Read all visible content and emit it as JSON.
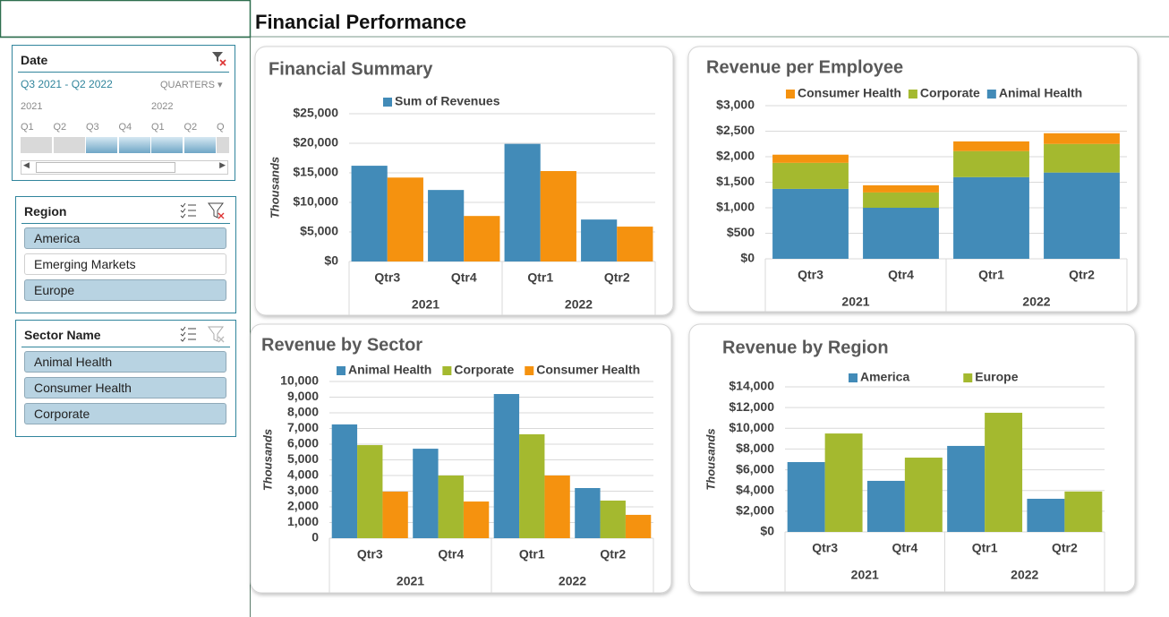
{
  "title": "Financial Performance",
  "slicers": [
    {
      "title": "Date",
      "range": "Q3 2021 - Q2 2022",
      "level": "QUARTERS",
      "years": [
        "2021",
        "2022"
      ],
      "periods": [
        "Q1",
        "Q2",
        "Q3",
        "Q4",
        "Q1",
        "Q2",
        "Q"
      ],
      "selected": [
        false,
        false,
        true,
        true,
        true,
        true,
        false
      ]
    },
    {
      "title": "Region",
      "items": [
        "America",
        "Emerging Markets",
        "Europe"
      ],
      "selected": [
        true,
        false,
        true
      ]
    },
    {
      "title": "Sector Name",
      "items": [
        "Animal Health",
        "Consumer Health",
        "Corporate"
      ],
      "selected": [
        true,
        true,
        true
      ]
    }
  ],
  "chart_data": [
    {
      "type": "bar",
      "title": "Financial Summary",
      "y_label": "Thousands",
      "categories": [
        "Qtr3",
        "Qtr4",
        "Qtr1",
        "Qtr2"
      ],
      "groups": [
        "2021",
        "2022"
      ],
      "series": [
        {
          "name": "Sum of Revenues",
          "color": "#428bb8",
          "values": [
            16200,
            12100,
            19900,
            7100
          ]
        },
        {
          "color": "#f5920f",
          "values": [
            14200,
            7700,
            15300,
            5900
          ]
        }
      ],
      "ylim": [
        0,
        25000
      ],
      "yticks": [
        {
          "value": 0,
          "label": "$0"
        },
        {
          "value": 5000,
          "label": "$5,000"
        },
        {
          "value": 10000,
          "label": "$10,000"
        },
        {
          "value": 15000,
          "label": "$15,000"
        },
        {
          "value": 20000,
          "label": "$20,000"
        },
        {
          "value": 25000,
          "label": "$25,000"
        }
      ],
      "grid": true
    },
    {
      "type": "bar",
      "stacked": true,
      "title": "Revenue per Employee",
      "categories": [
        "Qtr3",
        "Qtr4",
        "Qtr1",
        "Qtr2"
      ],
      "groups": [
        "2021",
        "2022"
      ],
      "series": [
        {
          "name": "Consumer Health",
          "color": "#f5920f",
          "values": [
            160,
            140,
            190,
            210
          ]
        },
        {
          "name": "Corporate",
          "color": "#a4b92f",
          "values": [
            510,
            300,
            510,
            560
          ]
        },
        {
          "name": "Animal Health",
          "color": "#428bb8",
          "values": [
            1370,
            1000,
            1600,
            1690
          ]
        }
      ],
      "ylim": [
        0,
        3000
      ],
      "yticks": [
        {
          "value": 0,
          "label": "$0"
        },
        {
          "value": 500,
          "label": "$500"
        },
        {
          "value": 1000,
          "label": "$1,000"
        },
        {
          "value": 1500,
          "label": "$1,500"
        },
        {
          "value": 2000,
          "label": "$2,000"
        },
        {
          "value": 2500,
          "label": "$2,500"
        },
        {
          "value": 3000,
          "label": "$3,000"
        }
      ],
      "grid": true
    },
    {
      "type": "bar",
      "title": "Revenue by Sector",
      "y_label": "Thousands",
      "categories": [
        "Qtr3",
        "Qtr4",
        "Qtr1",
        "Qtr2"
      ],
      "groups": [
        "2021",
        "2022"
      ],
      "series": [
        {
          "name": "Animal Health",
          "color": "#428bb8",
          "values": [
            7260,
            5710,
            9200,
            3200
          ]
        },
        {
          "name": "Corporate",
          "color": "#a4b92f",
          "values": [
            5940,
            4000,
            6630,
            2400
          ]
        },
        {
          "name": "Consumer Health",
          "color": "#f5920f",
          "values": [
            2970,
            2340,
            4000,
            1490
          ]
        }
      ],
      "ylim": [
        0,
        10000
      ],
      "yticks": [
        0,
        {
          "value": 1000,
          "label": "1,000"
        },
        {
          "value": 2000,
          "label": "2,000"
        },
        {
          "value": 3000,
          "label": "3,000"
        },
        {
          "value": 4000,
          "label": "4,000"
        },
        {
          "value": 5000,
          "label": "5,000"
        },
        {
          "value": 6000,
          "label": "6,000"
        },
        {
          "value": 7000,
          "label": "7,000"
        },
        {
          "value": 8000,
          "label": "8,000"
        },
        {
          "value": 9000,
          "label": "9,000"
        },
        {
          "value": 10000,
          "label": "10,000"
        }
      ],
      "grid": true
    },
    {
      "type": "bar",
      "title": "Revenue by Region",
      "y_label": "Thousands",
      "categories": [
        "Qtr3",
        "Qtr4",
        "Qtr1",
        "Qtr2"
      ],
      "groups": [
        "2021",
        "2022"
      ],
      "series": [
        {
          "name": "America",
          "color": "#428bb8",
          "values": [
            6740,
            4930,
            8300,
            3200
          ]
        },
        {
          "name": "Europe",
          "color": "#a4b92f",
          "values": [
            9500,
            7170,
            11500,
            3900
          ]
        }
      ],
      "ylim": [
        0,
        14000
      ],
      "yticks": [
        {
          "value": 0,
          "label": "$0"
        },
        {
          "value": 2000,
          "label": "$2,000"
        },
        {
          "value": 4000,
          "label": "$4,000"
        },
        {
          "value": 6000,
          "label": "$6,000"
        },
        {
          "value": 8000,
          "label": "$8,000"
        },
        {
          "value": 10000,
          "label": "$10,000"
        },
        {
          "value": 12000,
          "label": "$12,000"
        },
        {
          "value": 14000,
          "label": "$14,000"
        }
      ],
      "grid": true
    }
  ]
}
